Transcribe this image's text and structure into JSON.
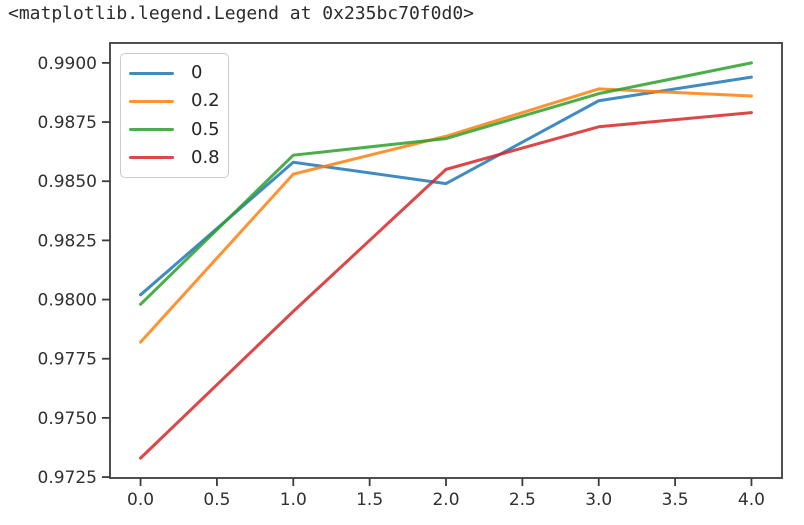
{
  "console_output": "<matplotlib.legend.Legend at 0x235bc70f0d0>",
  "colors": {
    "spine": "#3c3c3c",
    "tick_text": "#303030",
    "legend_border": "#cbcbcb",
    "background": "#ffffff"
  },
  "chart_data": {
    "type": "line",
    "title": "",
    "xlabel": "",
    "ylabel": "",
    "grid": false,
    "x": [
      0,
      1,
      2,
      3,
      4
    ],
    "series": [
      {
        "name": "0",
        "color": "#1f77b4",
        "values": [
          0.9802,
          0.9858,
          0.9849,
          0.9884,
          0.9894
        ]
      },
      {
        "name": "0.2",
        "color": "#ff7f0e",
        "values": [
          0.9782,
          0.9853,
          0.9869,
          0.9889,
          0.9886
        ]
      },
      {
        "name": "0.5",
        "color": "#2ca02c",
        "values": [
          0.9798,
          0.9861,
          0.9868,
          0.9887,
          0.99
        ]
      },
      {
        "name": "0.8",
        "color": "#d62728",
        "values": [
          0.9733,
          0.9795,
          0.9855,
          0.9873,
          0.9879
        ]
      }
    ],
    "x_ticks": [
      {
        "value": 0.0,
        "label": "0.0"
      },
      {
        "value": 0.5,
        "label": "0.5"
      },
      {
        "value": 1.0,
        "label": "1.0"
      },
      {
        "value": 1.5,
        "label": "1.5"
      },
      {
        "value": 2.0,
        "label": "2.0"
      },
      {
        "value": 2.5,
        "label": "2.5"
      },
      {
        "value": 3.0,
        "label": "3.0"
      },
      {
        "value": 3.5,
        "label": "3.5"
      },
      {
        "value": 4.0,
        "label": "4.0"
      }
    ],
    "y_ticks": [
      {
        "value": 0.9725,
        "label": "0.9725"
      },
      {
        "value": 0.975,
        "label": "0.9750"
      },
      {
        "value": 0.9775,
        "label": "0.9775"
      },
      {
        "value": 0.98,
        "label": "0.9800"
      },
      {
        "value": 0.9825,
        "label": "0.9825"
      },
      {
        "value": 0.985,
        "label": "0.9850"
      },
      {
        "value": 0.9875,
        "label": "0.9875"
      },
      {
        "value": 0.99,
        "label": "0.9900"
      }
    ],
    "xlim": [
      -0.2,
      4.2
    ],
    "ylim": [
      0.97246,
      0.99084
    ],
    "legend": {
      "position": "upper left",
      "entries": [
        "0",
        "0.2",
        "0.5",
        "0.8"
      ]
    }
  }
}
